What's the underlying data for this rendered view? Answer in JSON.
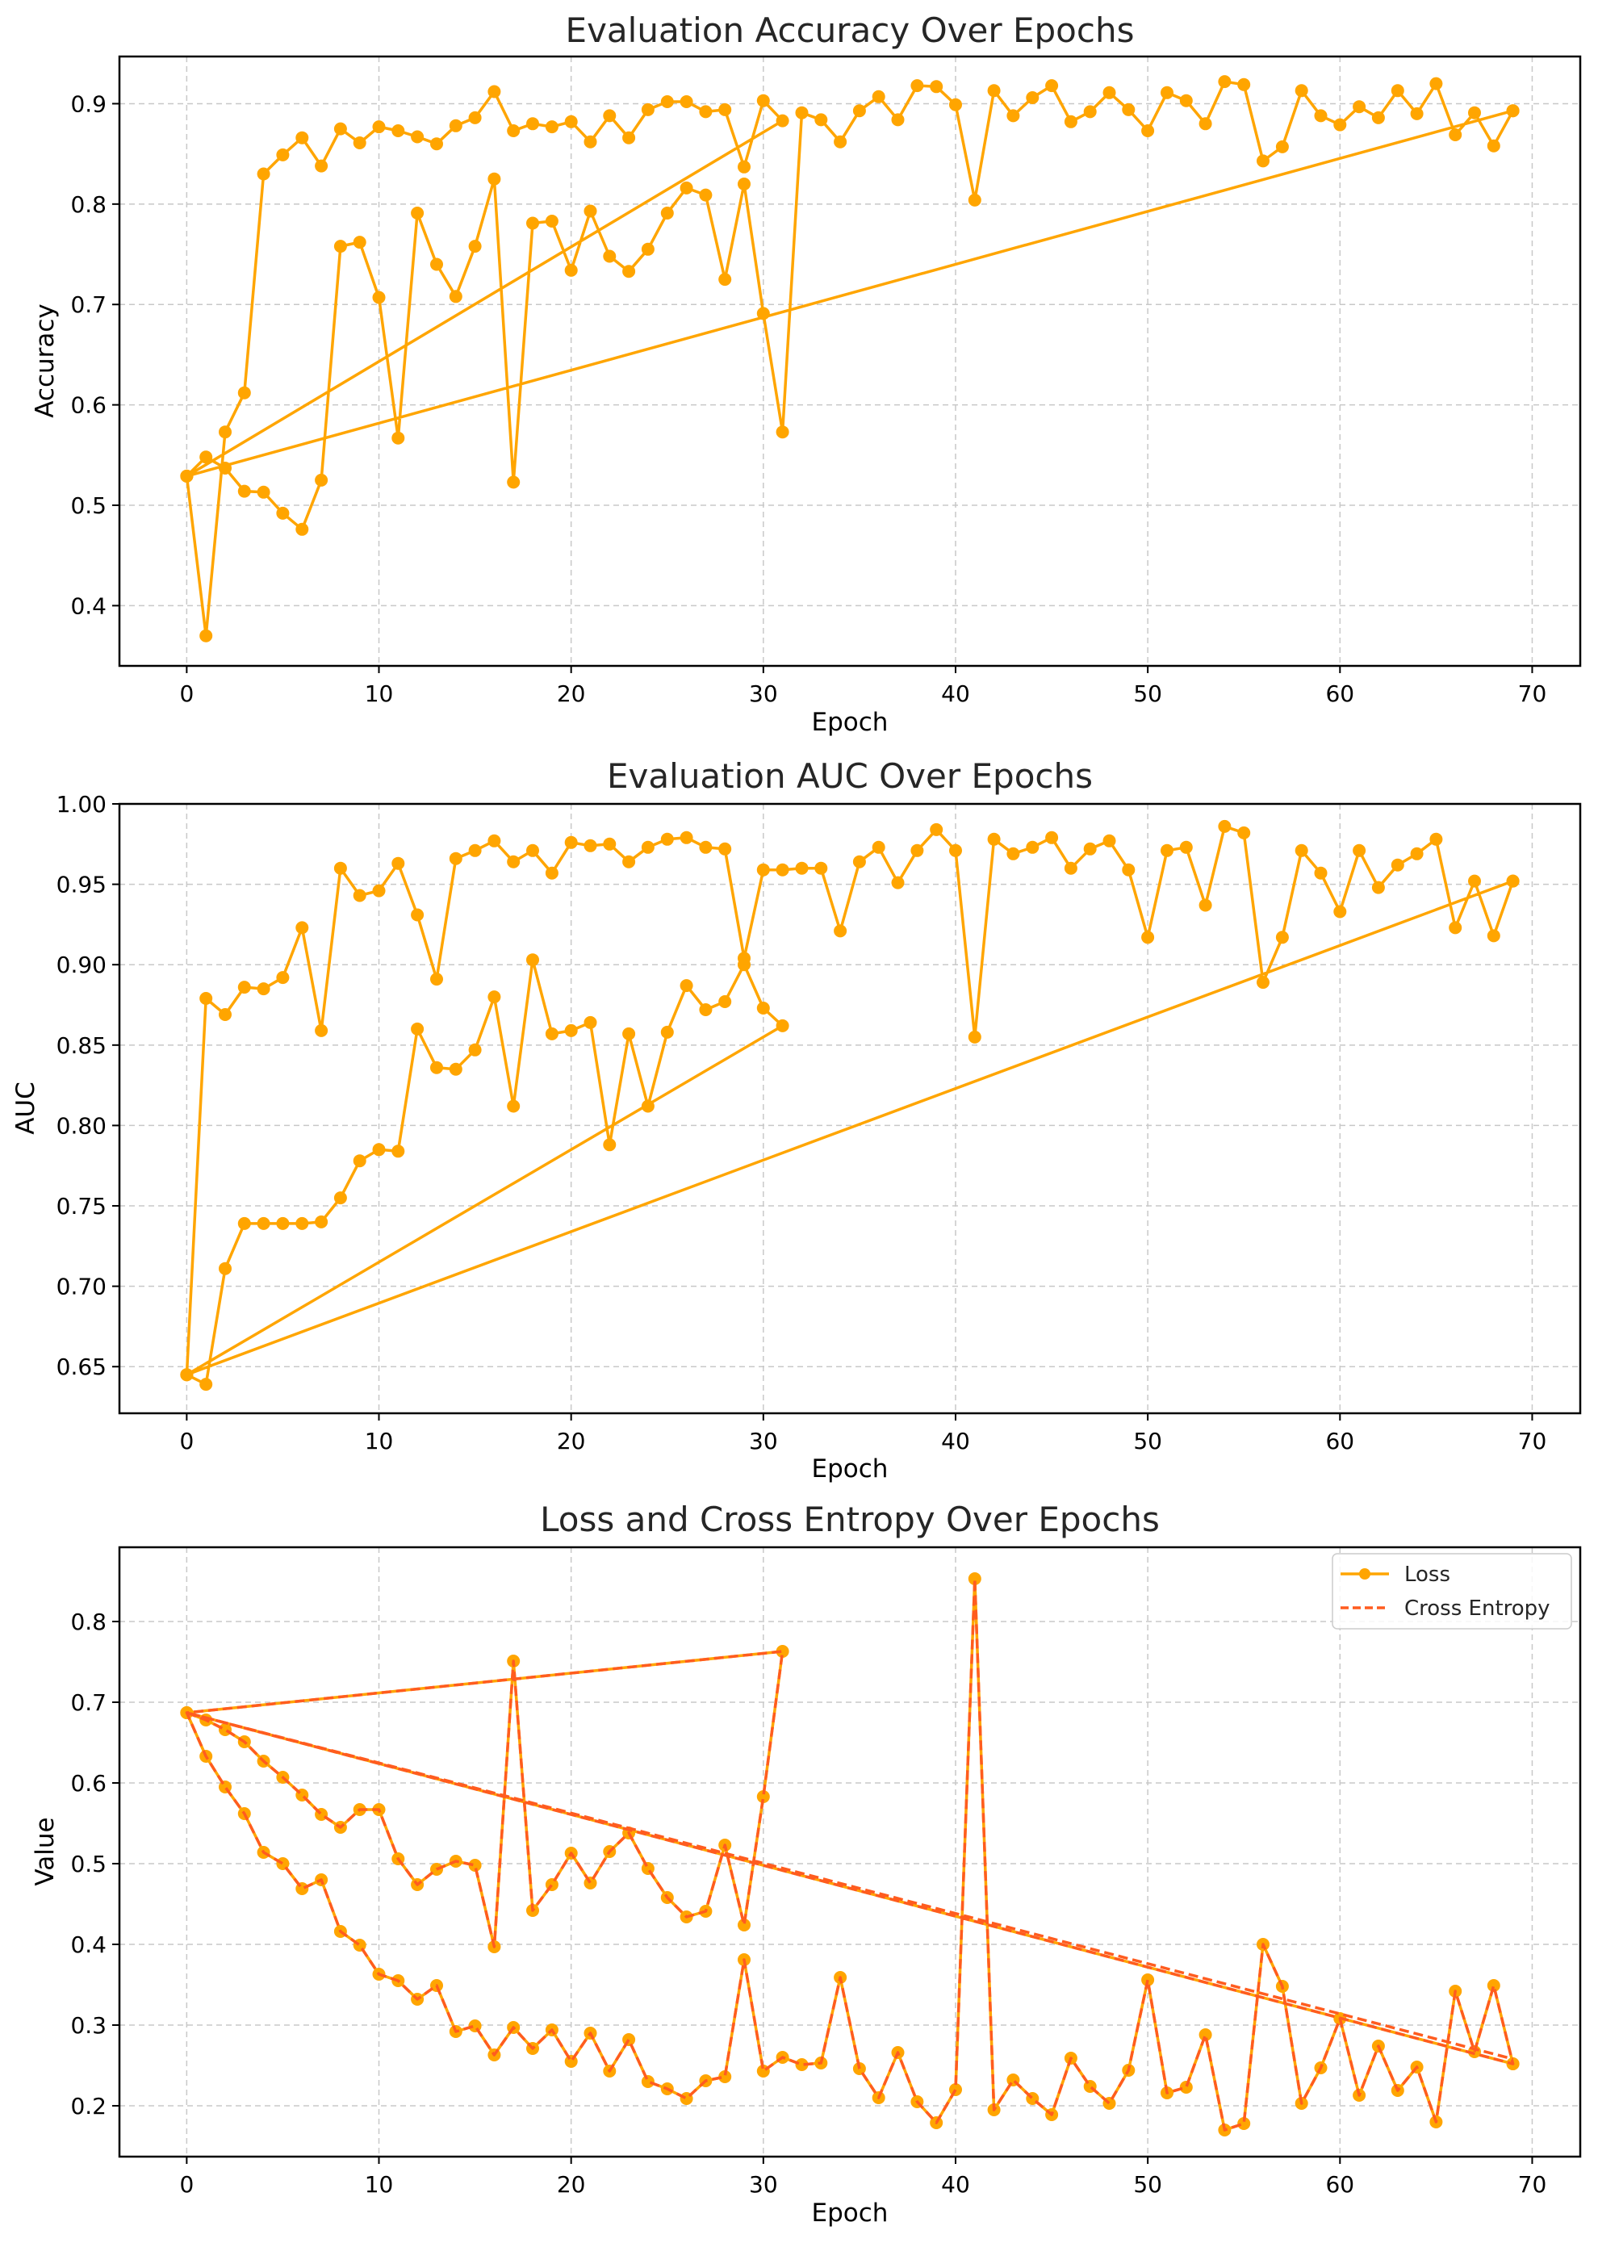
{
  "chart_data": [
    {
      "type": "line",
      "title": "Evaluation Accuracy Over Epochs",
      "xlabel": "Epoch",
      "ylabel": "Accuracy",
      "xlim": [
        -3.5,
        72.5
      ],
      "ylim": [
        0.34,
        0.947
      ],
      "xticks": [
        0,
        10,
        20,
        30,
        40,
        50,
        60,
        70
      ],
      "yticks": [
        0.4,
        0.5,
        0.6,
        0.7,
        0.8,
        0.9
      ],
      "ytick_labels": [
        "0.4",
        "0.5",
        "0.6",
        "0.7",
        "0.8",
        "0.9"
      ],
      "grid": true,
      "series": [
        {
          "color": "#ffa500",
          "marker": "circle",
          "linestyle": "solid",
          "x": [
            0,
            1,
            2,
            3,
            4,
            5,
            6,
            7,
            8,
            9,
            10,
            11,
            12,
            13,
            14,
            15,
            16,
            17,
            18,
            19,
            20,
            21,
            22,
            23,
            24,
            25,
            26,
            27,
            28,
            29,
            30,
            31,
            0,
            1,
            2,
            3,
            4,
            5,
            6,
            7,
            8,
            9,
            10,
            11,
            12,
            13,
            14,
            15,
            16,
            17,
            18,
            19,
            20,
            21,
            22,
            23,
            24,
            25,
            26,
            27,
            28,
            29,
            30,
            31,
            32,
            33,
            34,
            35,
            36,
            37,
            38,
            39,
            40,
            41,
            42,
            43,
            44,
            45,
            46,
            47,
            48,
            49,
            50,
            51,
            52,
            53,
            54,
            55,
            56,
            57,
            58,
            59,
            60,
            61,
            62,
            63,
            64,
            65,
            66,
            67,
            68,
            69,
            0,
            69
          ],
          "y": [
            0.529,
            0.37,
            0.573,
            0.612,
            0.83,
            0.849,
            0.866,
            0.838,
            0.875,
            0.861,
            0.877,
            0.873,
            0.867,
            0.86,
            0.878,
            0.886,
            0.912,
            0.873,
            0.88,
            0.877,
            0.882,
            0.862,
            0.888,
            0.866,
            0.894,
            0.902,
            0.902,
            0.892,
            0.894,
            0.837,
            0.903,
            0.883,
            0.529,
            0.548,
            0.537,
            0.514,
            0.513,
            0.492,
            0.476,
            0.525,
            0.758,
            0.762,
            0.707,
            0.567,
            0.791,
            0.74,
            0.708,
            0.758,
            0.825,
            0.523,
            0.781,
            0.783,
            0.734,
            0.793,
            0.748,
            0.733,
            0.755,
            0.791,
            0.816,
            0.809,
            0.725,
            0.82,
            0.691,
            0.573,
            0.891,
            0.884,
            0.862,
            0.893,
            0.907,
            0.884,
            0.918,
            0.917,
            0.899,
            0.804,
            0.913,
            0.888,
            0.906,
            0.918,
            0.882,
            0.892,
            0.911,
            0.894,
            0.873,
            0.911,
            0.903,
            0.88,
            0.922,
            0.919,
            0.843,
            0.857,
            0.913,
            0.888,
            0.879,
            0.897,
            0.886,
            0.913,
            0.89,
            0.92,
            0.869,
            0.891,
            0.858,
            0.893,
            0.529,
            0.893
          ]
        }
      ]
    },
    {
      "type": "line",
      "title": "Evaluation AUC Over Epochs",
      "xlabel": "Epoch",
      "ylabel": "AUC",
      "xlim": [
        -3.5,
        72.5
      ],
      "ylim": [
        0.621,
        1.0
      ],
      "xticks": [
        0,
        10,
        20,
        30,
        40,
        50,
        60,
        70
      ],
      "yticks": [
        0.65,
        0.7,
        0.75,
        0.8,
        0.85,
        0.9,
        0.95,
        1.0
      ],
      "ytick_labels": [
        "0.65",
        "0.70",
        "0.75",
        "0.80",
        "0.85",
        "0.90",
        "0.95",
        "1.00"
      ],
      "grid": true,
      "series": [
        {
          "color": "#ffa500",
          "marker": "circle",
          "linestyle": "solid",
          "x": [
            0,
            1,
            2,
            3,
            4,
            5,
            6,
            7,
            8,
            9,
            10,
            11,
            12,
            13,
            14,
            15,
            16,
            17,
            18,
            19,
            20,
            21,
            22,
            23,
            24,
            25,
            26,
            27,
            28,
            29,
            30,
            31,
            0,
            1,
            2,
            3,
            4,
            5,
            6,
            7,
            8,
            9,
            10,
            11,
            12,
            13,
            14,
            15,
            16,
            17,
            18,
            19,
            20,
            21,
            22,
            23,
            24,
            25,
            26,
            27,
            28,
            29,
            30,
            31,
            32,
            33,
            34,
            35,
            36,
            37,
            38,
            39,
            40,
            41,
            42,
            43,
            44,
            45,
            46,
            47,
            48,
            49,
            50,
            51,
            52,
            53,
            54,
            55,
            56,
            57,
            58,
            59,
            60,
            61,
            62,
            63,
            64,
            65,
            66,
            67,
            68,
            69,
            0,
            69
          ],
          "y": [
            0.645,
            0.639,
            0.711,
            0.739,
            0.739,
            0.739,
            0.739,
            0.74,
            0.755,
            0.778,
            0.785,
            0.784,
            0.86,
            0.836,
            0.835,
            0.847,
            0.88,
            0.812,
            0.903,
            0.857,
            0.859,
            0.864,
            0.788,
            0.857,
            0.812,
            0.858,
            0.887,
            0.872,
            0.877,
            0.9,
            0.873,
            0.862,
            0.645,
            0.879,
            0.869,
            0.886,
            0.885,
            0.892,
            0.923,
            0.859,
            0.96,
            0.943,
            0.946,
            0.963,
            0.931,
            0.891,
            0.966,
            0.971,
            0.977,
            0.964,
            0.971,
            0.957,
            0.976,
            0.974,
            0.975,
            0.964,
            0.973,
            0.978,
            0.979,
            0.973,
            0.972,
            0.904,
            0.959,
            0.959,
            0.96,
            0.96,
            0.921,
            0.964,
            0.973,
            0.951,
            0.971,
            0.984,
            0.971,
            0.855,
            0.978,
            0.969,
            0.973,
            0.979,
            0.96,
            0.972,
            0.977,
            0.959,
            0.917,
            0.971,
            0.973,
            0.937,
            0.986,
            0.982,
            0.889,
            0.917,
            0.971,
            0.957,
            0.933,
            0.971,
            0.948,
            0.962,
            0.969,
            0.978,
            0.923,
            0.952,
            0.918,
            0.952,
            0.645,
            0.952
          ]
        }
      ]
    },
    {
      "type": "line",
      "title": "Loss and Cross Entropy Over Epochs",
      "xlabel": "Epoch",
      "ylabel": "Value",
      "xlim": [
        -3.5,
        72.5
      ],
      "ylim": [
        0.137,
        0.892
      ],
      "xticks": [
        0,
        10,
        20,
        30,
        40,
        50,
        60,
        70
      ],
      "yticks": [
        0.2,
        0.3,
        0.4,
        0.5,
        0.6,
        0.7,
        0.8
      ],
      "ytick_labels": [
        "0.2",
        "0.3",
        "0.4",
        "0.5",
        "0.6",
        "0.7",
        "0.8"
      ],
      "grid": true,
      "legend_position": "upper right",
      "series": [
        {
          "name": "Loss",
          "color": "#ffa500",
          "marker": "circle",
          "linestyle": "solid",
          "x": [
            0,
            1,
            2,
            3,
            4,
            5,
            6,
            7,
            8,
            9,
            10,
            11,
            12,
            13,
            14,
            15,
            16,
            17,
            18,
            19,
            20,
            21,
            22,
            23,
            24,
            25,
            26,
            27,
            28,
            29,
            30,
            31,
            0,
            1,
            2,
            3,
            4,
            5,
            6,
            7,
            8,
            9,
            10,
            11,
            12,
            13,
            14,
            15,
            16,
            17,
            18,
            19,
            20,
            21,
            22,
            23,
            24,
            25,
            26,
            27,
            28,
            29,
            30,
            31,
            32,
            33,
            34,
            35,
            36,
            37,
            38,
            39,
            40,
            41,
            42,
            43,
            44,
            45,
            46,
            47,
            48,
            49,
            50,
            51,
            52,
            53,
            54,
            55,
            56,
            57,
            58,
            59,
            60,
            61,
            62,
            63,
            64,
            65,
            66,
            67,
            68,
            69,
            0,
            69
          ],
          "y": [
            0.687,
            0.678,
            0.666,
            0.651,
            0.627,
            0.607,
            0.585,
            0.561,
            0.545,
            0.567,
            0.567,
            0.506,
            0.474,
            0.493,
            0.503,
            0.498,
            0.397,
            0.751,
            0.442,
            0.474,
            0.513,
            0.476,
            0.515,
            0.538,
            0.494,
            0.458,
            0.434,
            0.441,
            0.523,
            0.424,
            0.583,
            0.763,
            0.687,
            0.633,
            0.595,
            0.562,
            0.514,
            0.5,
            0.469,
            0.48,
            0.416,
            0.399,
            0.363,
            0.355,
            0.332,
            0.349,
            0.292,
            0.299,
            0.263,
            0.297,
            0.271,
            0.294,
            0.255,
            0.29,
            0.243,
            0.282,
            0.23,
            0.221,
            0.209,
            0.231,
            0.236,
            0.381,
            0.243,
            0.26,
            0.251,
            0.253,
            0.359,
            0.246,
            0.21,
            0.266,
            0.205,
            0.179,
            0.22,
            0.853,
            0.195,
            0.232,
            0.209,
            0.189,
            0.259,
            0.224,
            0.203,
            0.244,
            0.356,
            0.216,
            0.223,
            0.288,
            0.17,
            0.178,
            0.4,
            0.348,
            0.203,
            0.247,
            0.308,
            0.213,
            0.274,
            0.219,
            0.248,
            0.18,
            0.342,
            0.267,
            0.349,
            0.252,
            0.687,
            0.252
          ]
        },
        {
          "name": "Cross Entropy",
          "color": "#ff5c1f",
          "marker": "none",
          "linestyle": "dashed",
          "x": [
            0,
            1,
            2,
            3,
            4,
            5,
            6,
            7,
            8,
            9,
            10,
            11,
            12,
            13,
            14,
            15,
            16,
            17,
            18,
            19,
            20,
            21,
            22,
            23,
            24,
            25,
            26,
            27,
            28,
            29,
            30,
            31,
            0,
            1,
            2,
            3,
            4,
            5,
            6,
            7,
            8,
            9,
            10,
            11,
            12,
            13,
            14,
            15,
            16,
            17,
            18,
            19,
            20,
            21,
            22,
            23,
            24,
            25,
            26,
            27,
            28,
            29,
            30,
            31,
            32,
            33,
            34,
            35,
            36,
            37,
            38,
            39,
            40,
            41,
            42,
            43,
            44,
            45,
            46,
            47,
            48,
            49,
            50,
            51,
            52,
            53,
            54,
            55,
            56,
            57,
            58,
            59,
            60,
            61,
            62,
            63,
            64,
            65,
            66,
            67,
            68,
            69,
            0,
            69
          ],
          "y": [
            0.687,
            0.678,
            0.666,
            0.651,
            0.627,
            0.607,
            0.585,
            0.561,
            0.545,
            0.567,
            0.567,
            0.506,
            0.474,
            0.493,
            0.503,
            0.498,
            0.397,
            0.751,
            0.442,
            0.474,
            0.513,
            0.476,
            0.515,
            0.538,
            0.494,
            0.458,
            0.434,
            0.441,
            0.523,
            0.424,
            0.583,
            0.763,
            0.687,
            0.633,
            0.595,
            0.562,
            0.514,
            0.5,
            0.469,
            0.48,
            0.416,
            0.399,
            0.363,
            0.355,
            0.332,
            0.349,
            0.292,
            0.299,
            0.263,
            0.297,
            0.271,
            0.294,
            0.255,
            0.29,
            0.243,
            0.282,
            0.23,
            0.221,
            0.209,
            0.231,
            0.236,
            0.381,
            0.243,
            0.26,
            0.251,
            0.253,
            0.359,
            0.246,
            0.21,
            0.266,
            0.205,
            0.179,
            0.22,
            0.853,
            0.195,
            0.232,
            0.209,
            0.189,
            0.259,
            0.224,
            0.203,
            0.244,
            0.356,
            0.216,
            0.223,
            0.288,
            0.17,
            0.178,
            0.4,
            0.348,
            0.203,
            0.247,
            0.308,
            0.213,
            0.274,
            0.219,
            0.248,
            0.18,
            0.342,
            0.267,
            0.349,
            0.252,
            0.687,
            0.258
          ]
        }
      ]
    }
  ]
}
